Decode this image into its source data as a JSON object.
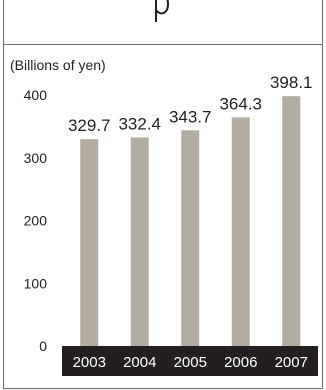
{
  "chart_data": {
    "type": "bar",
    "title": "",
    "unit_label": "(Billions of yen)",
    "xlabel": "",
    "ylabel": "",
    "categories": [
      "2003",
      "2004",
      "2005",
      "2006",
      "2007"
    ],
    "values": [
      329.7,
      332.4,
      343.7,
      364.3,
      398.1
    ],
    "value_labels": [
      "329.7",
      "332.4",
      "343.7",
      "364.3",
      "398.1"
    ],
    "yticks": [
      0,
      100,
      200,
      300,
      400
    ],
    "ytick_labels": [
      "0",
      "100",
      "200",
      "300",
      "400"
    ],
    "ylim": [
      0,
      400
    ],
    "grid": false,
    "legend": "none",
    "colors": {
      "bar": "#b3ada1",
      "axis_band": "#231f20",
      "text": "#231f20",
      "frame": "#6d6e71"
    }
  }
}
